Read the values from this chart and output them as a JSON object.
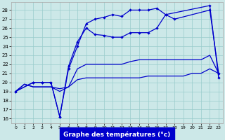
{
  "background_color": "#cce8e8",
  "grid_color": "#99cccc",
  "line_color": "#0000cc",
  "xlabel": "Graphe des températures (°c)",
  "xlabel_fontsize": 6.5,
  "yticks": [
    16,
    17,
    18,
    19,
    20,
    21,
    22,
    23,
    24,
    25,
    26,
    27,
    28
  ],
  "xticks": [
    0,
    1,
    2,
    3,
    4,
    5,
    6,
    7,
    8,
    9,
    10,
    11,
    12,
    13,
    14,
    15,
    16,
    17,
    18,
    19,
    20,
    21,
    22,
    23
  ],
  "ylim": [
    15.5,
    28.9
  ],
  "xlim": [
    -0.5,
    23.5
  ],
  "s1_x": [
    0,
    2,
    3,
    4,
    5,
    6,
    7,
    8,
    9,
    10,
    11,
    12,
    13,
    14,
    15,
    16,
    17,
    22,
    23
  ],
  "s1_y": [
    19,
    20,
    20,
    20,
    16.2,
    21.5,
    24.0,
    26.5,
    27.0,
    27.2,
    27.5,
    27.3,
    28.0,
    28.0,
    28.0,
    28.2,
    27.5,
    28.5,
    20.5
  ],
  "s2_x": [
    0,
    2,
    3,
    4,
    5,
    6,
    7,
    8,
    9,
    10,
    11,
    12,
    13,
    14,
    15,
    16,
    17,
    18,
    22,
    23
  ],
  "s2_y": [
    19,
    20,
    20,
    20,
    16.2,
    21.8,
    24.5,
    26.0,
    25.3,
    25.2,
    25.0,
    25.0,
    25.5,
    25.5,
    25.5,
    26.0,
    27.5,
    27.0,
    28.0,
    21.0
  ],
  "s3_x": [
    0,
    1,
    2,
    3,
    4,
    5,
    6,
    7,
    8,
    9,
    10,
    11,
    12,
    13,
    14,
    15,
    16,
    17,
    18,
    19,
    20,
    21,
    22,
    23
  ],
  "s3_y": [
    19,
    19.8,
    19.5,
    19.5,
    19.5,
    19.3,
    19.5,
    20.3,
    20.5,
    20.5,
    20.5,
    20.5,
    20.5,
    20.5,
    20.5,
    20.7,
    20.7,
    20.7,
    20.7,
    20.7,
    21.0,
    21.0,
    21.5,
    21.0
  ],
  "s4_x": [
    0,
    1,
    2,
    3,
    4,
    5,
    6,
    7,
    8,
    9,
    10,
    11,
    12,
    13,
    14,
    15,
    16,
    17,
    18,
    19,
    20,
    21,
    22,
    23
  ],
  "s4_y": [
    19,
    19.8,
    19.5,
    19.5,
    19.5,
    19.0,
    19.5,
    21.5,
    22.0,
    22.0,
    22.0,
    22.0,
    22.0,
    22.3,
    22.5,
    22.5,
    22.5,
    22.5,
    22.5,
    22.5,
    22.5,
    22.5,
    23.0,
    21.0
  ]
}
